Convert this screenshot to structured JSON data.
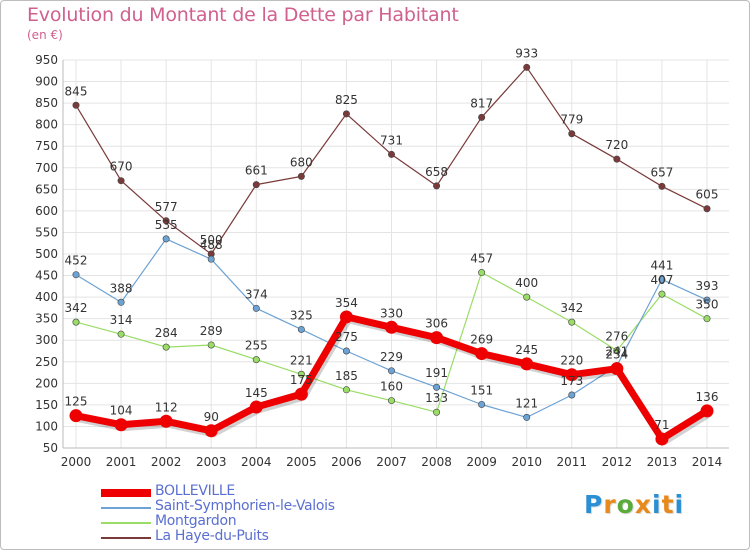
{
  "header": {
    "title": "Evolution du Montant de la Dette par Habitant",
    "subtitle": "(en €)"
  },
  "logo": {
    "text": "Proxiti",
    "letter_colors": [
      "#2b8fd4",
      "#e8891c",
      "#5aab3c",
      "#e8891c",
      "#2b8fd4",
      "#e8891c",
      "#2b8fd4"
    ]
  },
  "chart_data": {
    "type": "line",
    "title": "Evolution du Montant de la Dette par Habitant",
    "subtitle": "(en €)",
    "xlabel": "",
    "ylabel": "",
    "x": [
      "2000",
      "2001",
      "2002",
      "2003",
      "2004",
      "2005",
      "2006",
      "2007",
      "2008",
      "2009",
      "2010",
      "2011",
      "2012",
      "2013",
      "2014"
    ],
    "y_ticks": [
      50,
      100,
      150,
      200,
      250,
      300,
      350,
      400,
      450,
      500,
      550,
      600,
      650,
      700,
      750,
      800,
      850,
      900,
      950
    ],
    "ylim": [
      50,
      950
    ],
    "grid": true,
    "legend_position": "bottom-left",
    "series": [
      {
        "name": "BOLLEVILLE",
        "color": "#ee0000",
        "values": [
          125,
          104,
          112,
          90,
          145,
          175,
          354,
          330,
          306,
          269,
          245,
          220,
          234,
          71,
          136
        ],
        "labels": [
          "125",
          "104",
          "112",
          "90",
          "145",
          "175",
          "354",
          "330",
          "306",
          "269",
          "245",
          "220",
          "234",
          "71",
          "136"
        ]
      },
      {
        "name": "Saint-Symphorien-le-Valois",
        "color": "#6ca2d4",
        "values": [
          452,
          388,
          535,
          488,
          374,
          325,
          275,
          229,
          191,
          151,
          121,
          173,
          241,
          441,
          393
        ],
        "labels": [
          "452",
          "388",
          "535",
          "488",
          "374",
          "325",
          "275",
          "229",
          "191",
          "151",
          "121",
          "173",
          "241",
          "441",
          "393"
        ]
      },
      {
        "name": "Montgardon",
        "color": "#99dd66",
        "values": [
          342,
          314,
          284,
          289,
          255,
          221,
          185,
          160,
          133,
          457,
          400,
          342,
          276,
          407,
          350
        ],
        "labels": [
          "342",
          "314",
          "284",
          "289",
          "255",
          "221",
          "185",
          "160",
          "133",
          "457",
          "400",
          "342",
          "276",
          "407",
          "350"
        ]
      },
      {
        "name": "La Haye-du-Puits",
        "color": "#7a3a3a",
        "values": [
          845,
          670,
          577,
          500,
          661,
          680,
          825,
          731,
          658,
          817,
          933,
          779,
          720,
          657,
          605
        ],
        "labels": [
          "845",
          "670",
          "577",
          "500",
          "661",
          "680",
          "825",
          "731",
          "658",
          "817",
          "933",
          "779",
          "720",
          "657",
          "605"
        ]
      }
    ]
  }
}
